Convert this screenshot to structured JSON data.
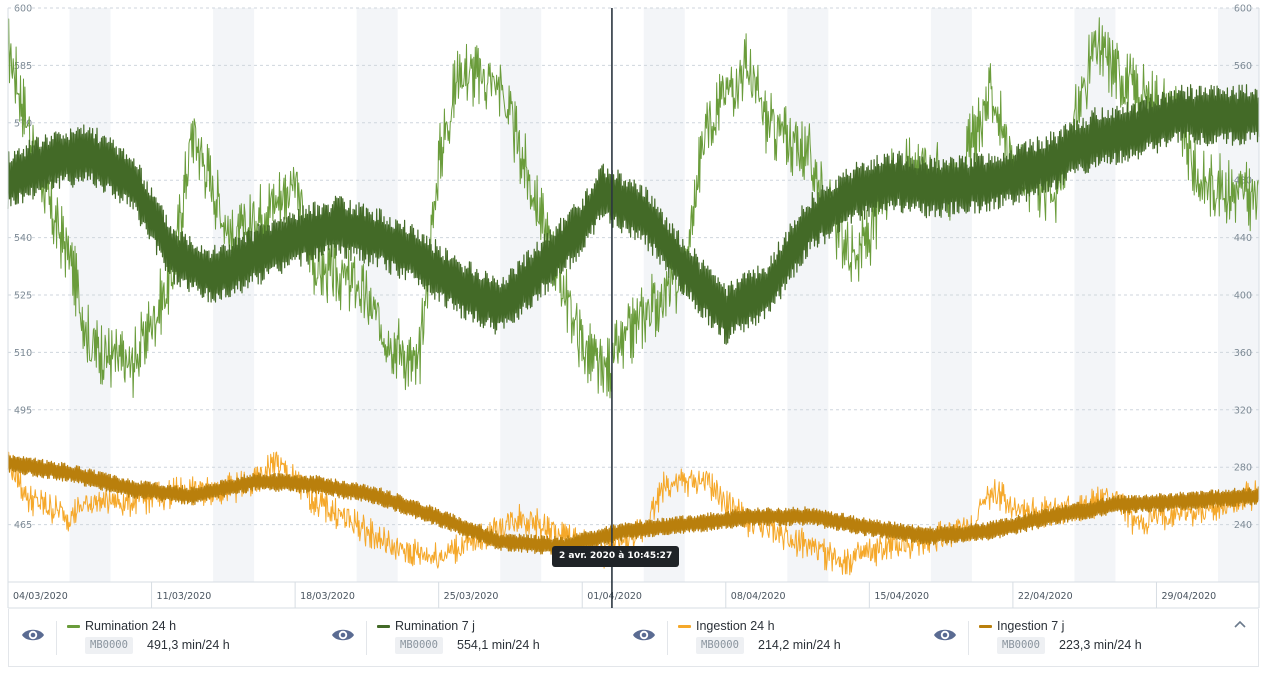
{
  "chart_data": {
    "type": "line",
    "x_start": "04/03/2020",
    "x_end": "04/05/2020",
    "x_tick_labels": [
      "04/03/2020",
      "11/03/2020",
      "18/03/2020",
      "25/03/2020",
      "01/04/2020",
      "08/04/2020",
      "15/04/2020",
      "22/04/2020",
      "29/04/2020"
    ],
    "x_tick_dates": [
      "2020-03-04",
      "2020-03-11",
      "2020-03-18",
      "2020-03-25",
      "2020-04-01",
      "2020-04-08",
      "2020-04-15",
      "2020-04-22",
      "2020-04-29"
    ],
    "y_left": {
      "min": 450,
      "max": 600,
      "ticks": [
        465,
        480,
        495,
        510,
        525,
        540,
        555,
        570,
        585,
        600
      ]
    },
    "y_right": {
      "min": 200,
      "max": 600,
      "ticks": [
        240,
        280,
        320,
        360,
        400,
        440,
        480,
        520,
        560,
        600
      ]
    },
    "grid": true,
    "crosshair": {
      "date": "2020-04-02T10:45:27",
      "label": "2 avr. 2020 à 10:45:27"
    },
    "series": [
      {
        "name": "Rumination 24 h",
        "axis": "left",
        "color": "#6a9c3b",
        "width": 1,
        "noise": 7,
        "osc": 2,
        "x": [
          "2020-03-04",
          "2020-03-06",
          "2020-03-07",
          "2020-03-08",
          "2020-03-10",
          "2020-03-12",
          "2020-03-13",
          "2020-03-15",
          "2020-03-16",
          "2020-03-18",
          "2020-03-19",
          "2020-03-21",
          "2020-03-22",
          "2020-03-24",
          "2020-03-25",
          "2020-03-26",
          "2020-03-28",
          "2020-03-29",
          "2020-03-31",
          "2020-04-01",
          "2020-04-02",
          "2020-04-04",
          "2020-04-06",
          "2020-04-07",
          "2020-04-09",
          "2020-04-10",
          "2020-04-12",
          "2020-04-14",
          "2020-04-15",
          "2020-04-16",
          "2020-04-18",
          "2020-04-19",
          "2020-04-21",
          "2020-04-22",
          "2020-04-24",
          "2020-04-26",
          "2020-04-28",
          "2020-04-30",
          "2020-05-01",
          "2020-05-04"
        ],
        "y": [
          590,
          548,
          535,
          512,
          506,
          530,
          568,
          538,
          545,
          554,
          532,
          528,
          518,
          505,
          560,
          584,
          580,
          562,
          528,
          512,
          504,
          520,
          530,
          570,
          585,
          570,
          562,
          535,
          540,
          556,
          560,
          552,
          578,
          558,
          550,
          590,
          578,
          573,
          555,
          550
        ]
      },
      {
        "name": "Rumination 7 j",
        "axis": "left",
        "color": "#436a27",
        "width": 1.2,
        "noise": 2,
        "osc": 6,
        "x": [
          "2020-03-04",
          "2020-03-06",
          "2020-03-08",
          "2020-03-10",
          "2020-03-12",
          "2020-03-14",
          "2020-03-16",
          "2020-03-18",
          "2020-03-20",
          "2020-03-22",
          "2020-03-24",
          "2020-03-26",
          "2020-03-28",
          "2020-03-30",
          "2020-04-01",
          "2020-04-02",
          "2020-04-04",
          "2020-04-06",
          "2020-04-08",
          "2020-04-10",
          "2020-04-12",
          "2020-04-14",
          "2020-04-16",
          "2020-04-18",
          "2020-04-20",
          "2020-04-22",
          "2020-04-24",
          "2020-04-26",
          "2020-04-28",
          "2020-04-30",
          "2020-05-04"
        ],
        "y": [
          555,
          560,
          562,
          555,
          536,
          530,
          535,
          540,
          543,
          540,
          535,
          527,
          522,
          532,
          543,
          552,
          546,
          532,
          520,
          526,
          543,
          551,
          555,
          553,
          554,
          556,
          560,
          566,
          568,
          572,
          572
        ]
      },
      {
        "name": "Ingestion 24 h",
        "axis": "right",
        "color": "#f5a82a",
        "width": 1,
        "noise": 9,
        "osc": 2,
        "x": [
          "2020-03-04",
          "2020-03-05",
          "2020-03-07",
          "2020-03-08",
          "2020-03-10",
          "2020-03-12",
          "2020-03-14",
          "2020-03-16",
          "2020-03-17",
          "2020-03-19",
          "2020-03-21",
          "2020-03-23",
          "2020-03-25",
          "2020-03-27",
          "2020-03-29",
          "2020-03-31",
          "2020-04-02",
          "2020-04-04",
          "2020-04-05",
          "2020-04-07",
          "2020-04-09",
          "2020-04-11",
          "2020-04-13",
          "2020-04-14",
          "2020-04-16",
          "2020-04-18",
          "2020-04-20",
          "2020-04-21",
          "2020-04-23",
          "2020-04-25",
          "2020-04-27",
          "2020-04-28",
          "2020-04-30",
          "2020-05-02",
          "2020-05-04"
        ],
        "y": [
          285,
          258,
          246,
          256,
          256,
          262,
          264,
          268,
          284,
          256,
          240,
          222,
          218,
          230,
          246,
          232,
          220,
          236,
          268,
          270,
          242,
          232,
          218,
          215,
          224,
          230,
          240,
          262,
          248,
          252,
          258,
          240,
          248,
          252,
          262
        ]
      },
      {
        "name": "Ingestion 7 j",
        "axis": "right",
        "color": "#b97f0c",
        "width": 1.2,
        "noise": 1.5,
        "osc": 5,
        "x": [
          "2020-03-04",
          "2020-03-07",
          "2020-03-10",
          "2020-03-13",
          "2020-03-16",
          "2020-03-19",
          "2020-03-22",
          "2020-03-25",
          "2020-03-28",
          "2020-03-31",
          "2020-04-03",
          "2020-04-06",
          "2020-04-09",
          "2020-04-12",
          "2020-04-15",
          "2020-04-18",
          "2020-04-21",
          "2020-04-24",
          "2020-04-27",
          "2020-04-30",
          "2020-05-04"
        ],
        "y": [
          283,
          276,
          265,
          260,
          270,
          268,
          260,
          245,
          228,
          225,
          235,
          240,
          245,
          246,
          238,
          232,
          236,
          246,
          254,
          256,
          260
        ]
      }
    ]
  },
  "legend": [
    {
      "name": "Rumination 24 h",
      "id": "MB0000",
      "value": "491,3 min/24 h",
      "color": "#6a9c3b",
      "icon": "eye-icon"
    },
    {
      "name": "Rumination 7 j",
      "id": "MB0000",
      "value": "554,1 min/24 h",
      "color": "#436a27",
      "icon": "eye-icon"
    },
    {
      "name": "Ingestion 24 h",
      "id": "MB0000",
      "value": "214,2 min/24 h",
      "color": "#f5a82a",
      "icon": "eye-icon"
    },
    {
      "name": "Ingestion 7 j",
      "id": "MB0000",
      "value": "223,3 min/24 h",
      "color": "#b97f0c",
      "icon": "eye-icon"
    }
  ],
  "collapse_icon": "chevron-up-icon"
}
